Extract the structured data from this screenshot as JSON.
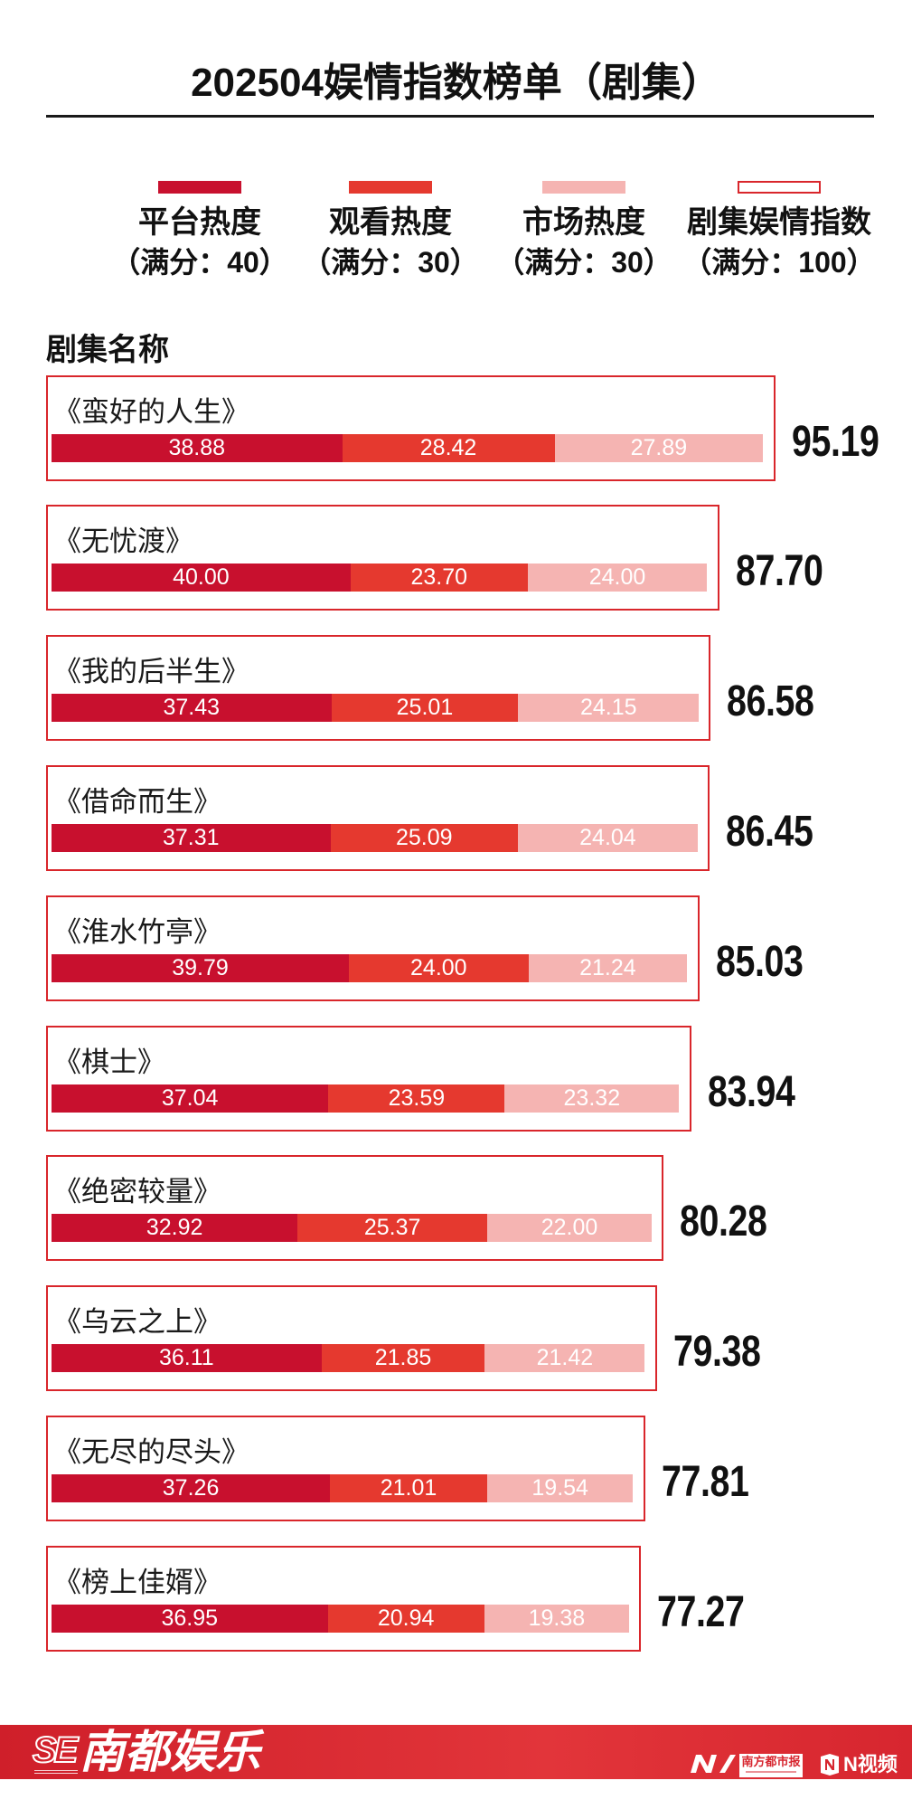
{
  "chart_data": {
    "type": "bar",
    "orientation": "horizontal",
    "stacked": true,
    "legend_position": "top",
    "grid": false,
    "title": "202504娱情指数榜单（剧集）",
    "category_label": "剧集名称",
    "categories": [
      "《蛮好的人生》",
      "《无忧渡》",
      "《我的后半生》",
      "《借命而生》",
      "《淮水竹亭》",
      "《棋士》",
      "《绝密较量》",
      "《乌云之上》",
      "《无尽的尽头》",
      "《榜上佳婿》"
    ],
    "series": [
      {
        "name": "平台热度",
        "note": "（满分：40）",
        "color": "#c8102e",
        "values": [
          38.88,
          40.0,
          37.43,
          37.31,
          39.79,
          37.04,
          32.92,
          36.11,
          37.26,
          36.95
        ]
      },
      {
        "name": "观看热度",
        "note": "（满分：30）",
        "color": "#e5392f",
        "values": [
          28.42,
          23.7,
          25.01,
          25.09,
          24.0,
          23.59,
          25.37,
          21.85,
          21.01,
          20.94
        ]
      },
      {
        "name": "市场热度",
        "note": "（满分：30）",
        "color": "#f5b4b2",
        "values": [
          27.89,
          24.0,
          24.15,
          24.04,
          21.24,
          23.32,
          22.0,
          21.42,
          19.54,
          19.38
        ]
      }
    ],
    "totals": {
      "name": "剧集娱情指数",
      "note": "（满分：100）",
      "color": "#d9262b",
      "values": [
        95.19,
        87.7,
        86.58,
        86.45,
        85.03,
        83.94,
        80.28,
        79.38,
        77.81,
        77.27
      ]
    }
  },
  "footer": {
    "brand_mark": "SE",
    "brand": "南都娱乐",
    "partner": "南方都市报",
    "video": "N视频",
    "logo_icon": "nandu-logo-icon",
    "video_icon": "n-video-icon",
    "band_color": "#d7262f"
  }
}
